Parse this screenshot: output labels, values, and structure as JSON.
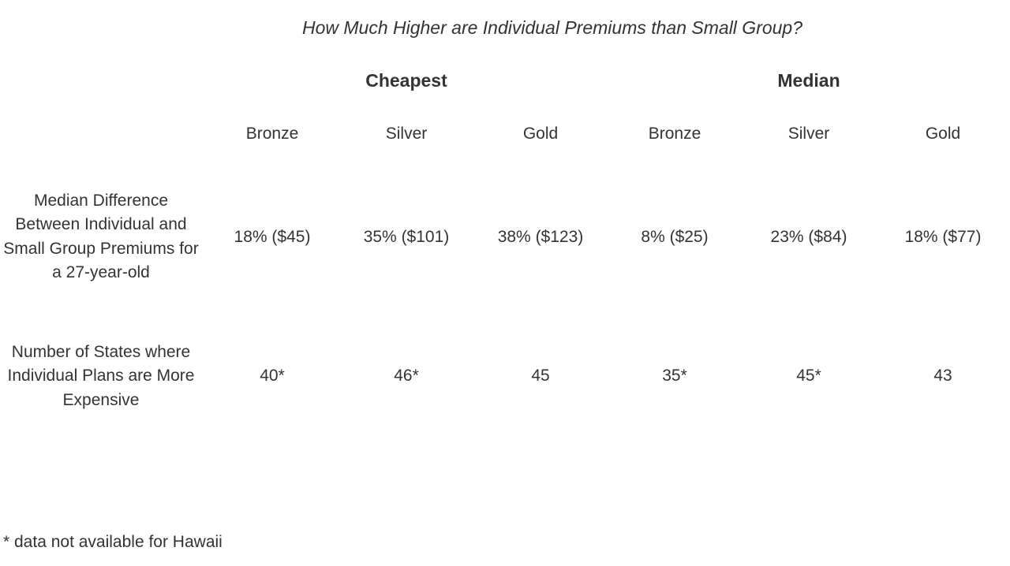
{
  "title": "How Much Higher are Individual Premiums than Small Group?",
  "table": {
    "type": "table",
    "groupHeaders": [
      "Cheapest",
      "Median"
    ],
    "subHeaders": [
      "Bronze",
      "Silver",
      "Gold",
      "Bronze",
      "Silver",
      "Gold"
    ],
    "rows": [
      {
        "label": "Median Difference Between Individual and Small Group Premiums for a 27-year-old",
        "cells": [
          "18%  ($45)",
          "35% ($101)",
          "38% ($123)",
          "8% ($25)",
          "23% ($84)",
          "18% ($77)"
        ]
      },
      {
        "label": "Number of States where Individual Plans are More Expensive",
        "cells": [
          "40*",
          "46*",
          "45",
          "35*",
          "45*",
          "43"
        ]
      }
    ],
    "columnWidths": {
      "label": 260,
      "data": 170
    },
    "text_color": "#333333",
    "background_color": "#ffffff",
    "title_fontsize": 23,
    "group_header_fontsize": 23,
    "sub_header_fontsize": 21,
    "cell_fontsize": 21,
    "row_label_fontsize": 21,
    "footnote_fontsize": 21,
    "title_fontstyle": "italic",
    "group_header_fontweight": 700
  },
  "footnote": "* data not available for Hawaii"
}
